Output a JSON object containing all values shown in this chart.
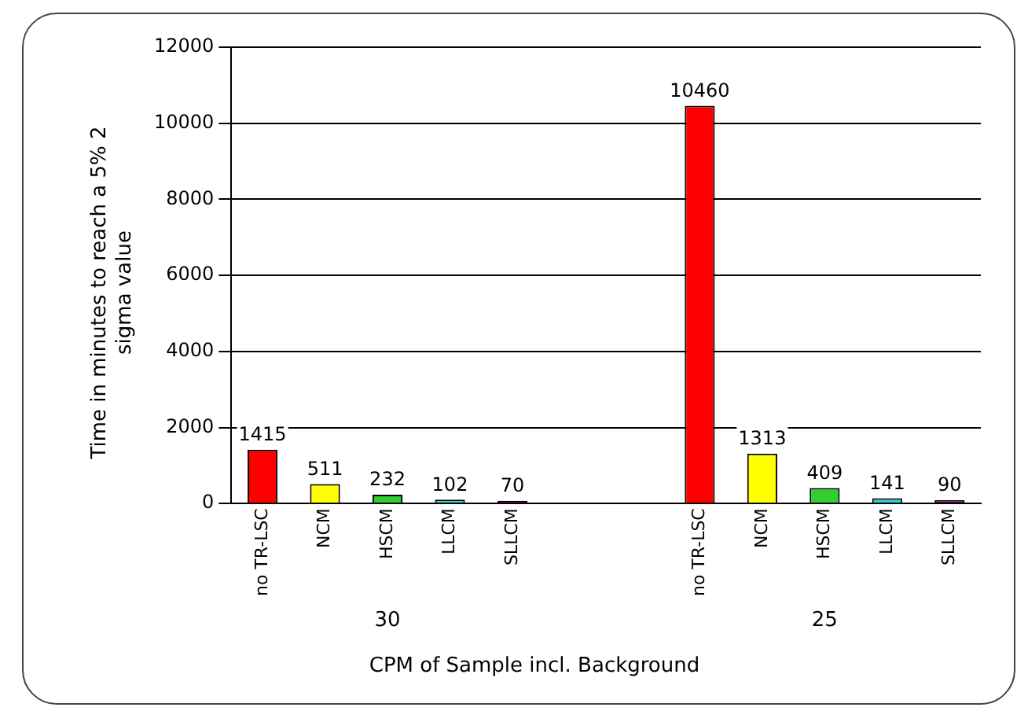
{
  "chart_data": {
    "type": "bar",
    "xlabel": "CPM of Sample incl. Background",
    "ylabel": "Time in minutes to reach a 5% 2 sigma value",
    "categories": [
      "no TR-LSC",
      "NCM",
      "HSCM",
      "LLCM",
      "SLLCM",
      null,
      null,
      "no TR-LSC",
      "NCM",
      "HSCM",
      "LLCM",
      "SLLCM"
    ],
    "values": [
      1415,
      511,
      232,
      102,
      70,
      null,
      null,
      10460,
      1313,
      409,
      141,
      90
    ],
    "colors": [
      "#ff0000",
      "#ffff00",
      "#33cc33",
      "#33cccc",
      "#660066",
      "#ffffff",
      "#ffffff",
      "#ff0000",
      "#ffff00",
      "#33cc33",
      "#33cccc",
      "#660066"
    ],
    "ylim": [
      0,
      12000
    ],
    "yticks": [
      0,
      2000,
      4000,
      6000,
      8000,
      10000,
      12000
    ],
    "grid": "y",
    "data_labels": true,
    "legend": false,
    "annotations": [
      "30",
      "25"
    ]
  }
}
